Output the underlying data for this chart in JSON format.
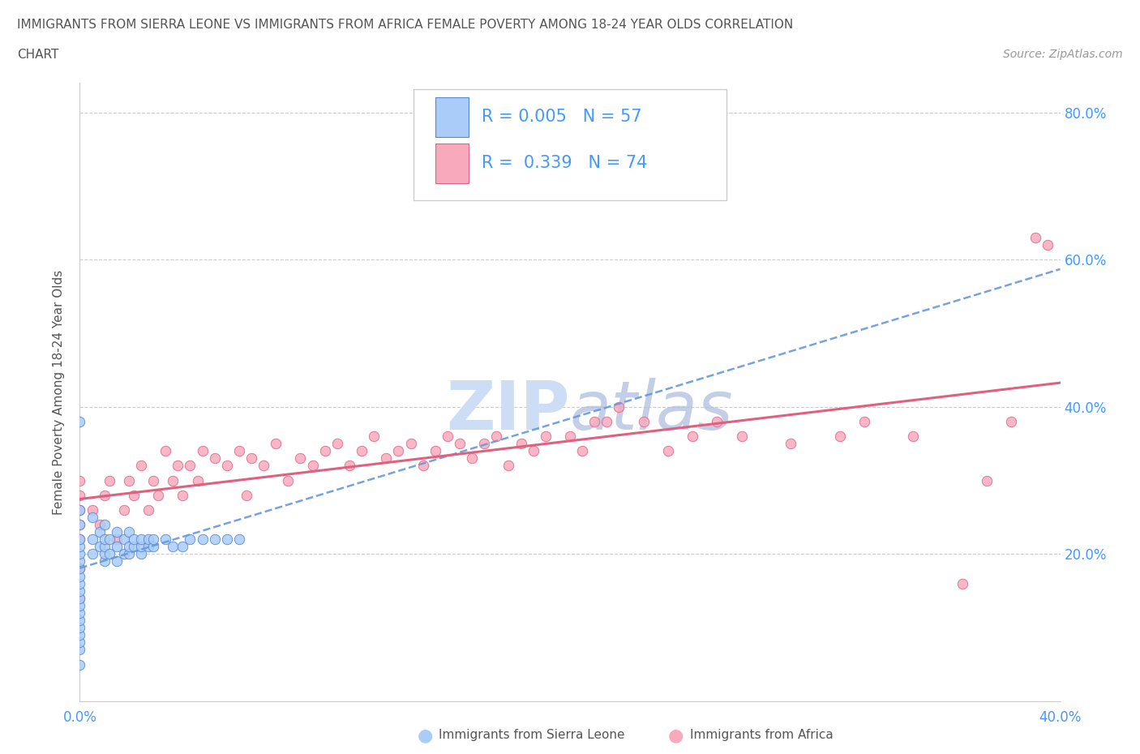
{
  "title_line1": "IMMIGRANTS FROM SIERRA LEONE VS IMMIGRANTS FROM AFRICA FEMALE POVERTY AMONG 18-24 YEAR OLDS CORRELATION",
  "title_line2": "CHART",
  "source_text": "Source: ZipAtlas.com",
  "ylabel": "Female Poverty Among 18-24 Year Olds",
  "xlim": [
    0.0,
    0.4
  ],
  "ylim": [
    0.0,
    0.84
  ],
  "ytick_positions": [
    0.2,
    0.4,
    0.6,
    0.8
  ],
  "ytick_labels": [
    "20.0%",
    "40.0%",
    "60.0%",
    "80.0%"
  ],
  "legend_R1": "0.005",
  "legend_N1": "57",
  "legend_R2": "0.339",
  "legend_N2": "74",
  "sierra_leone_color": "#aaccf8",
  "africa_color": "#f8aabc",
  "sierra_leone_edge_color": "#5588cc",
  "africa_edge_color": "#dd6688",
  "sierra_leone_line_color": "#6699dd",
  "africa_line_color": "#e06080",
  "watermark_color": "#ccddf5",
  "background_color": "#ffffff",
  "grid_color": "#cccccc",
  "title_color": "#555555",
  "label_color": "#555555",
  "tick_label_color": "#4499ff",
  "legend_text_color": "#4499ff",
  "source_color": "#999999"
}
